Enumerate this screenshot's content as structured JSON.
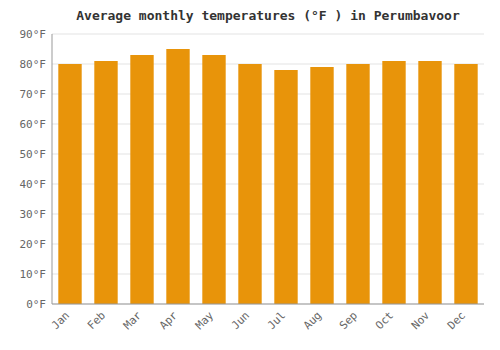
{
  "chart_data": {
    "type": "bar",
    "title": "Average monthly temperatures (°F ) in Perumbavoor",
    "categories": [
      "Jan",
      "Feb",
      "Mar",
      "Apr",
      "May",
      "Jun",
      "Jul",
      "Aug",
      "Sep",
      "Oct",
      "Nov",
      "Dec"
    ],
    "values": [
      80,
      81,
      83,
      85,
      83,
      80,
      78,
      79,
      80,
      81,
      81,
      80
    ],
    "color": "#E8940A",
    "ylim": [
      0,
      90
    ],
    "yticks": [
      {
        "value": 0,
        "label": "0°F"
      },
      {
        "value": 10,
        "label": "10°F"
      },
      {
        "value": 20,
        "label": "20°F"
      },
      {
        "value": 30,
        "label": "30°F"
      },
      {
        "value": 40,
        "label": "40°F"
      },
      {
        "value": 50,
        "label": "50°F"
      },
      {
        "value": 60,
        "label": "60°F"
      },
      {
        "value": 70,
        "label": "70°F"
      },
      {
        "value": 80,
        "label": "80°F"
      },
      {
        "value": 90,
        "label": "90°F"
      }
    ],
    "grid": true
  }
}
